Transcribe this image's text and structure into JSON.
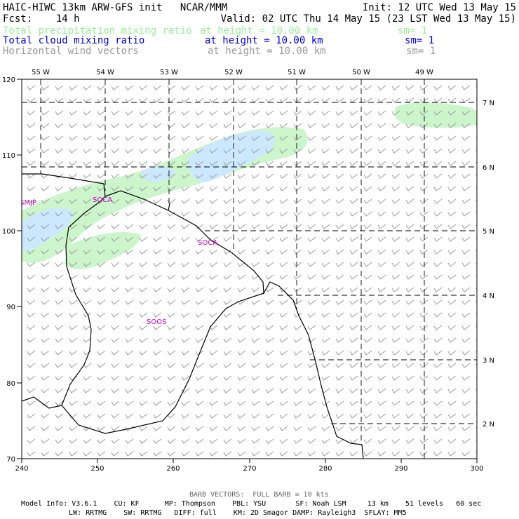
{
  "header": {
    "line1_left": "HAIC-HIWC 13km ARW-GFS init   NCAR/MMM",
    "line1_right": "Init: 12 UTC Wed 13 May 15",
    "line2_left": "Fcst:    14 h",
    "line2_right": "Valid: 02 UTC Thu 14 May 15 (23 LST Wed 13 May 15)",
    "fields": [
      {
        "name": "Total precipitation mixing ratio",
        "height": "at height = 10.00 km",
        "sm": "sm= 1",
        "color": "#99ee99"
      },
      {
        "name": "Total cloud mixing ratio",
        "height": "at height = 10.00 km",
        "sm": "sm= 1",
        "color": "#0000cc"
      },
      {
        "name": "Horizontal wind vectors",
        "height": "at height = 10.00 km",
        "sm": "sm= 1",
        "color": "#999999"
      }
    ]
  },
  "map": {
    "y_ticks": [
      "120",
      "110",
      "100",
      "90",
      "80",
      "70"
    ],
    "x_ticks": [
      "240",
      "250",
      "260",
      "270",
      "280",
      "290",
      "300"
    ],
    "lon_labels": [
      "55 W",
      "54 W",
      "53 W",
      "52 W",
      "51 W",
      "50 W",
      "49 W"
    ],
    "lat_labels": [
      "7 N",
      "6 N",
      "5 N",
      "4 N",
      "3 N",
      "2 N"
    ],
    "stations": [
      "SMJP",
      "SOCA",
      "SOCA",
      "SOOS"
    ],
    "colors": {
      "precip": "#ccf5cc",
      "cloud": "#cce8ff",
      "barb": "#999999",
      "coast": "#000000",
      "station": "#c000c0"
    }
  },
  "footer": {
    "barb_note": "BARB VECTORS:  FULL BARB = 10 kts",
    "model_line1": "Model Info: V3.6.1    CU: KF      MP: Thompson    PBL: YSU       SF: Noah LSM     13 km    51 levels   60 sec",
    "model_line2": "LW: RRTMG    SW: RRTMG   DIFF: full    KM: 2D Smagor DAMP: Rayleigh3  SFLAY: MM5"
  }
}
